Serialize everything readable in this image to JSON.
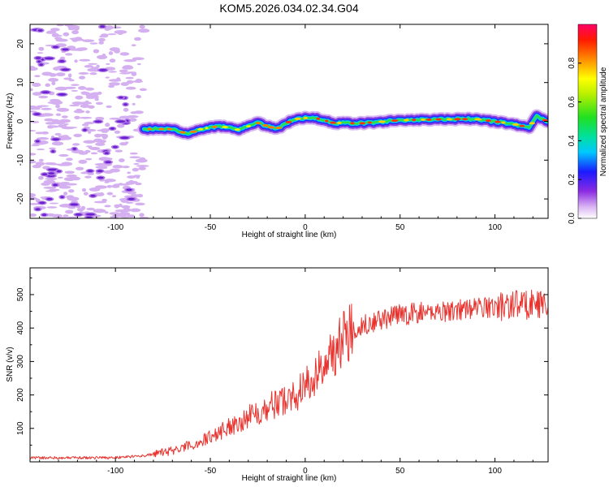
{
  "title": "KOM5.2026.034.02.34.G04",
  "chart_data": [
    {
      "type": "heatmap",
      "name": "spectrogram",
      "xlabel": "Height of straight line (km)",
      "ylabel": "Frequency (Hz)",
      "xlim": [
        -145,
        128
      ],
      "ylim": [
        -25,
        25
      ],
      "xticks": [
        -100,
        -50,
        0,
        50,
        100
      ],
      "yticks": [
        -20,
        -10,
        0,
        10,
        20
      ],
      "signal_start_km": -85,
      "signal_track": {
        "x": [
          -85,
          -70,
          -62,
          -55,
          -45,
          -35,
          -25,
          -15,
          -8,
          -3,
          5,
          15,
          30,
          50,
          70,
          90,
          110,
          118,
          122,
          128
        ],
        "freq_hz": [
          -2.0,
          -2.0,
          -3.2,
          -2.0,
          -1.2,
          -2.2,
          -0.4,
          -2.0,
          0.0,
          0.8,
          0.9,
          -0.4,
          -0.5,
          0.3,
          0.5,
          0.6,
          -0.7,
          -1.6,
          1.3,
          -0.1
        ]
      },
      "colorbar": {
        "label": "Normalized spectral amplitude",
        "range": [
          0.0,
          1.0
        ],
        "ticks": [
          0.0,
          0.2,
          0.4,
          0.6,
          0.8
        ],
        "tick_labels": [
          "0.0",
          "0.2",
          "0.4",
          "0.6",
          "0.8"
        ]
      }
    },
    {
      "type": "line",
      "name": "snr",
      "xlabel": "Height of straight line (km)",
      "ylabel": "SNR (v/v)",
      "xlim": [
        -145,
        128
      ],
      "ylim": [
        0,
        580
      ],
      "xticks": [
        -100,
        -50,
        0,
        50,
        100
      ],
      "yticks": [
        100,
        200,
        300,
        400,
        500
      ],
      "color": "#e8332e",
      "series": [
        {
          "name": "SNR",
          "x": [
            -145,
            -120,
            -100,
            -85,
            -75,
            -65,
            -55,
            -45,
            -35,
            -25,
            -15,
            -5,
            0,
            5,
            10,
            15,
            20,
            25,
            30,
            40,
            50,
            60,
            70,
            80,
            90,
            100,
            105,
            110,
            115,
            120,
            125,
            128
          ],
          "y": [
            12,
            12,
            13,
            18,
            28,
            40,
            60,
            90,
            120,
            150,
            175,
            200,
            225,
            255,
            290,
            330,
            370,
            395,
            410,
            425,
            440,
            445,
            450,
            455,
            460,
            465,
            465,
            475,
            470,
            475,
            470,
            480
          ]
        }
      ]
    }
  ]
}
